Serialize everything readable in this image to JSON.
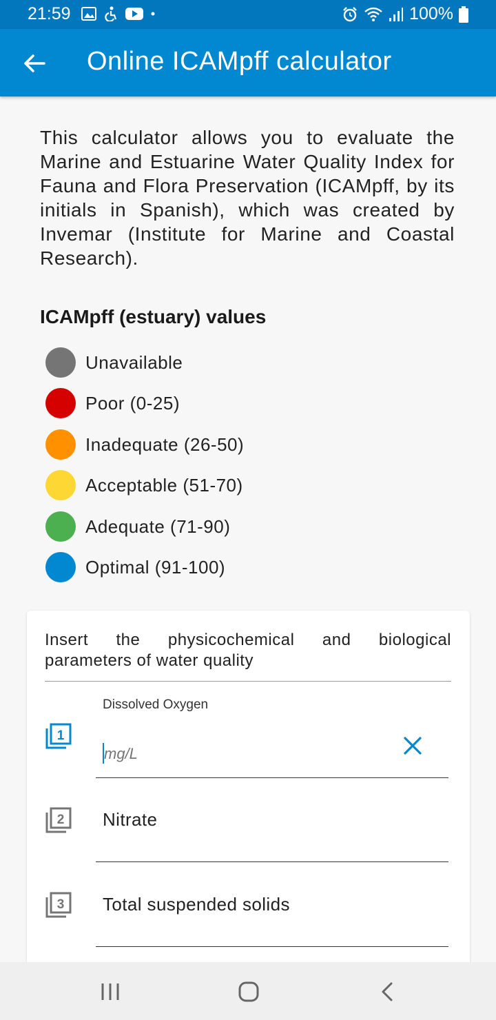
{
  "status_bar": {
    "time": "21:59",
    "battery": "100%",
    "left_icons": [
      "image-icon",
      "accessibility-icon",
      "youtube-icon",
      "dot-icon"
    ],
    "right_icons": [
      "alarm-icon",
      "wifi-icon",
      "signal-icon",
      "battery-icon"
    ]
  },
  "app_bar": {
    "title": "Online ICAMpff calculator",
    "back_icon": "arrow-left-icon"
  },
  "intro": {
    "text": "This calculator allows you to evaluate the Marine and Estuarine Water Quality Index for Fauna and Flora Preservation (ICAMpff, by its initials in Spanish), which was created by Invemar (Institute for Marine and Coastal Research)."
  },
  "legend": {
    "title": "ICAMpff (estuary) values",
    "items": [
      {
        "label": "Unavailable",
        "color": "#757575"
      },
      {
        "label": "Poor (0-25)",
        "color": "#d50000"
      },
      {
        "label": "Inadequate (26-50)",
        "color": "#ff9100"
      },
      {
        "label": "Acceptable (51-70)",
        "color": "#fdd835"
      },
      {
        "label": "Adequate (71-90)",
        "color": "#4caf50"
      },
      {
        "label": "Optimal (91-100)",
        "color": "#0288d1"
      }
    ]
  },
  "form": {
    "heading": "Insert the physicochemical and biological parameters of water quality",
    "fields": [
      {
        "number": "1",
        "label": "Dissolved Oxygen",
        "value": "",
        "placeholder": "mg/L",
        "icon": "filter-1-icon",
        "active": true,
        "icon_color": "#0288d1"
      },
      {
        "number": "2",
        "label": "Nitrate",
        "value": "",
        "placeholder": "",
        "icon": "filter-2-icon",
        "active": false,
        "icon_color": "#757575"
      },
      {
        "number": "3",
        "label": "Total suspended solids",
        "value": "",
        "placeholder": "",
        "icon": "filter-3-icon",
        "active": false,
        "icon_color": "#757575"
      }
    ],
    "clear_icon": "close-icon"
  },
  "nav_bar": {
    "buttons": [
      "recent-apps-icon",
      "home-icon",
      "back-icon"
    ]
  }
}
